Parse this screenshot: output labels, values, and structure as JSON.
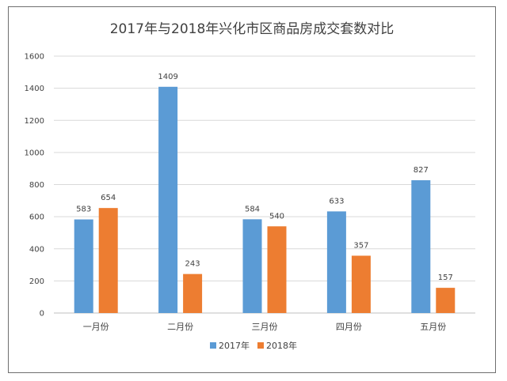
{
  "chart_data": {
    "type": "bar",
    "title": "2017年与2018年兴化市区商品房成交套数对比",
    "categories": [
      "一月份",
      "二月份",
      "三月份",
      "四月份",
      "五月份"
    ],
    "series": [
      {
        "name": "2017年",
        "values": [
          583,
          1409,
          584,
          633,
          827
        ],
        "color": "#5B9BD5"
      },
      {
        "name": "2018年",
        "values": [
          654,
          243,
          540,
          357,
          157
        ],
        "color": "#ED7D31"
      }
    ],
    "yticks": [
      0,
      200,
      400,
      600,
      800,
      1000,
      1200,
      1400,
      1600
    ],
    "ylim": [
      0,
      1600
    ],
    "grid": true,
    "legend_position": "bottom",
    "data_labels": true
  }
}
